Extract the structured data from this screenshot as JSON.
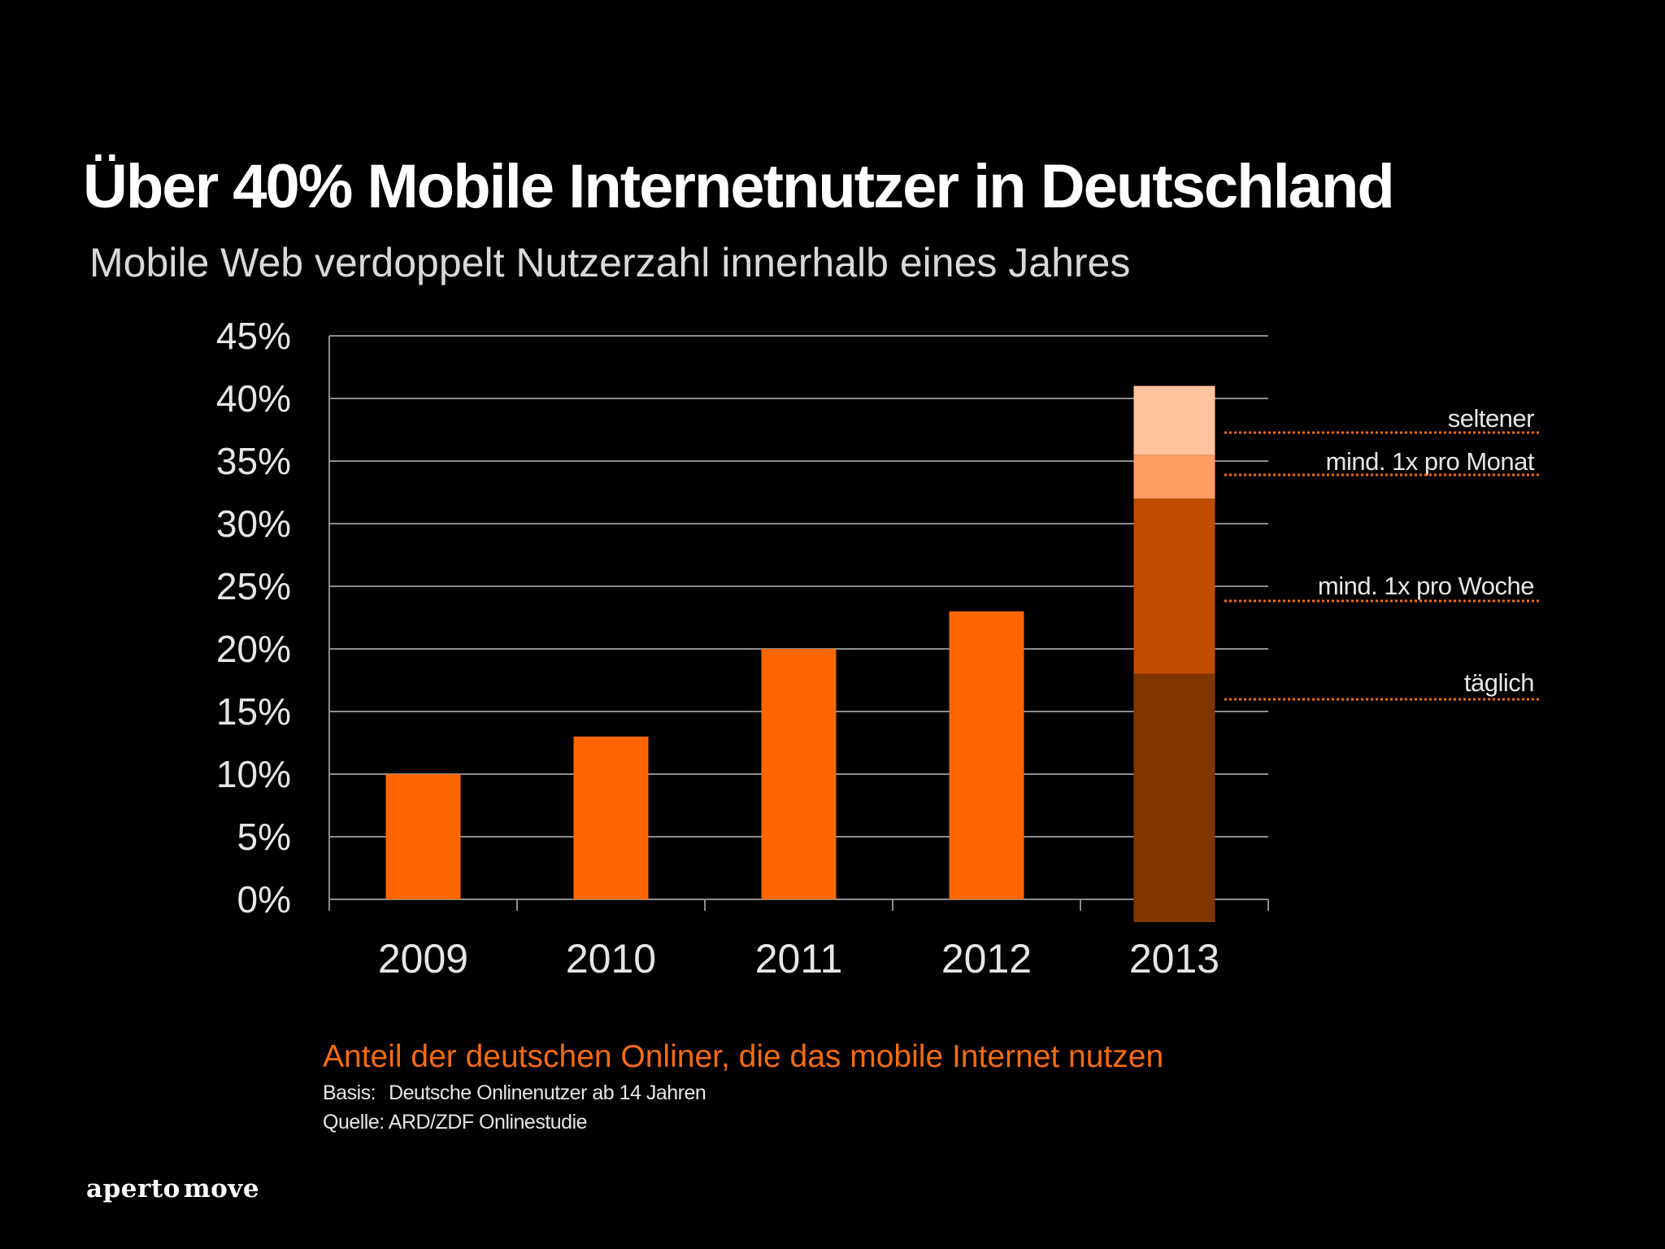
{
  "title": "Über 40% Mobile Internetnutzer in Deutschland",
  "subtitle": "Mobile Web verdoppelt Nutzerzahl innerhalb eines Jahres",
  "caption": "Anteil der deutschen Onliner, die das mobile Internet nutzen",
  "basis_label": "Basis:",
  "basis_text": "Deutsche Onlinenutzer ab 14 Jahren",
  "source": "Quelle: ARD/ZDF Onlinestudie",
  "brand": {
    "part1": "aperto",
    "part2": "move"
  },
  "colors": {
    "bar": "#ff6600",
    "taeglich": "#813600",
    "woche": "#bf4d00",
    "monat": "#ff9d62",
    "seltener": "#ffc39d",
    "grid": "#8c8c8c",
    "leader": "#f46b0e",
    "axis_text": "#e6e6e6",
    "caption": "#f46b0e"
  },
  "chart_data": {
    "type": "bar",
    "categories": [
      "2009",
      "2010",
      "2011",
      "2012",
      "2013"
    ],
    "values": [
      10,
      13,
      20,
      23,
      null
    ],
    "stacked_2013": [
      {
        "name": "täglich",
        "value": 18
      },
      {
        "name": "mind. 1x pro Woche",
        "value": 14
      },
      {
        "name": "mind. 1x pro Monat",
        "value": 3.5
      },
      {
        "name": "seltener",
        "value": 5.5
      }
    ],
    "total_2013": 41,
    "yticks": [
      "0%",
      "5%",
      "10%",
      "15%",
      "20%",
      "25%",
      "30%",
      "35%",
      "40%",
      "45%"
    ],
    "ylim": [
      0,
      45
    ],
    "grid": true,
    "legend_position": "right"
  }
}
